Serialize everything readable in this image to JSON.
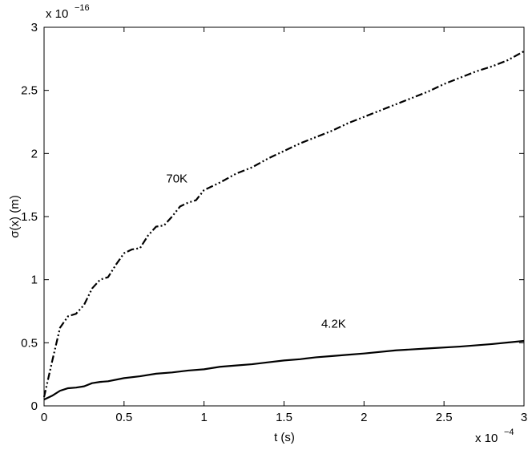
{
  "chart_data": {
    "type": "line",
    "xlabel": "t (s)",
    "ylabel": "σ(x) (m)",
    "x_multiplier": "x 10",
    "x_exponent": "−4",
    "y_multiplier": "x 10",
    "y_exponent": "−16",
    "xlim": [
      0,
      3
    ],
    "ylim": [
      0,
      3
    ],
    "xticks": [
      "0",
      "0.5",
      "1",
      "1.5",
      "2",
      "2.5",
      "3"
    ],
    "yticks": [
      "0",
      "0.5",
      "1",
      "1.5",
      "2",
      "2.5",
      "3"
    ],
    "grid": false,
    "legend": "none",
    "series": [
      {
        "label": "70K",
        "style": "dash-dot",
        "color": "#000000",
        "x": [
          0,
          0.05,
          0.1,
          0.15,
          0.2,
          0.25,
          0.3,
          0.35,
          0.4,
          0.45,
          0.5,
          0.55,
          0.6,
          0.65,
          0.7,
          0.75,
          0.8,
          0.85,
          0.9,
          0.95,
          1.0,
          1.1,
          1.2,
          1.3,
          1.4,
          1.5,
          1.6,
          1.7,
          1.8,
          1.9,
          2.0,
          2.1,
          2.2,
          2.3,
          2.4,
          2.5,
          2.6,
          2.7,
          2.8,
          2.9,
          3.0
        ],
        "values": [
          0.07,
          0.35,
          0.62,
          0.71,
          0.73,
          0.8,
          0.93,
          1.0,
          1.02,
          1.12,
          1.21,
          1.24,
          1.25,
          1.35,
          1.42,
          1.43,
          1.5,
          1.58,
          1.61,
          1.63,
          1.71,
          1.77,
          1.84,
          1.89,
          1.96,
          2.02,
          2.08,
          2.13,
          2.18,
          2.24,
          2.29,
          2.34,
          2.39,
          2.44,
          2.49,
          2.55,
          2.6,
          2.65,
          2.69,
          2.74,
          2.81
        ],
        "label_at": [
          0.83,
          1.77
        ]
      },
      {
        "label": "4.2K",
        "style": "solid",
        "color": "#000000",
        "x": [
          0,
          0.05,
          0.1,
          0.15,
          0.2,
          0.25,
          0.3,
          0.35,
          0.4,
          0.5,
          0.6,
          0.7,
          0.8,
          0.9,
          1.0,
          1.1,
          1.2,
          1.3,
          1.4,
          1.5,
          1.6,
          1.7,
          1.8,
          1.9,
          2.0,
          2.2,
          2.4,
          2.6,
          2.8,
          3.0
        ],
        "values": [
          0.05,
          0.08,
          0.12,
          0.14,
          0.145,
          0.155,
          0.18,
          0.19,
          0.195,
          0.22,
          0.235,
          0.255,
          0.265,
          0.28,
          0.29,
          0.31,
          0.32,
          0.33,
          0.345,
          0.36,
          0.37,
          0.385,
          0.395,
          0.405,
          0.415,
          0.44,
          0.455,
          0.47,
          0.49,
          0.515
        ],
        "label_at": [
          1.81,
          0.62
        ]
      }
    ]
  }
}
